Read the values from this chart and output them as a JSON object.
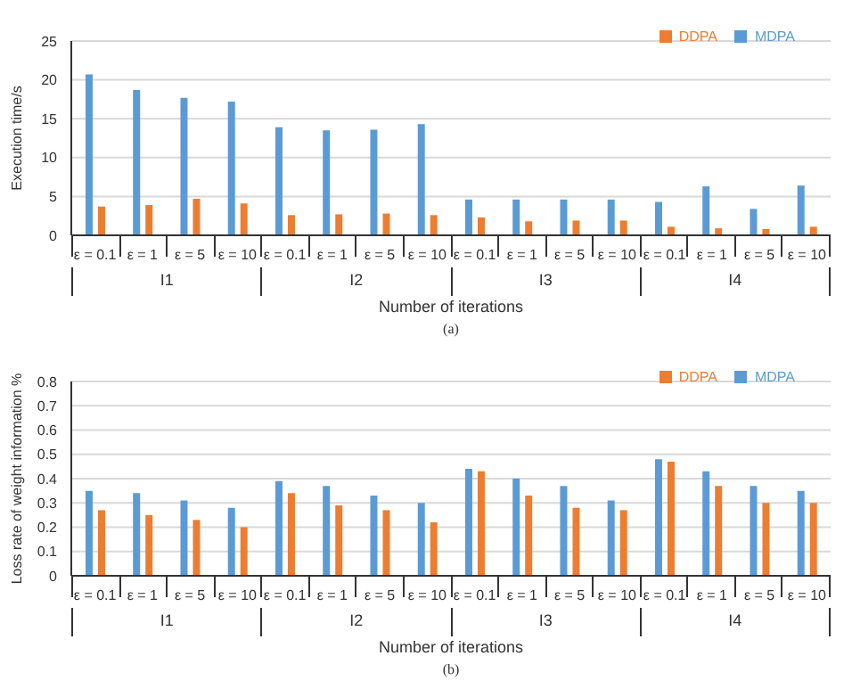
{
  "chart_data": [
    {
      "type": "bar",
      "xlabel": "Number of iterations",
      "ylabel": "Execution time/s",
      "categories": [
        "ε = 0.1",
        "ε = 1",
        "ε = 5",
        "ε = 10",
        "ε = 0.1",
        "ε = 1",
        "ε = 5",
        "ε = 10",
        "ε = 0.1",
        "ε = 1",
        "ε = 5",
        "ε = 10",
        "ε = 0.1",
        "ε = 1",
        "ε = 5",
        "ε = 10"
      ],
      "series": [
        {
          "name": "MDPA",
          "color": "#5b9bd5",
          "values": [
            20.7,
            18.7,
            17.7,
            17.2,
            13.9,
            13.5,
            13.6,
            14.3,
            4.6,
            4.6,
            4.6,
            4.6,
            4.3,
            6.3,
            3.4,
            6.4
          ]
        },
        {
          "name": "DDPA",
          "color": "#ed7d31",
          "values": [
            3.7,
            3.9,
            4.7,
            4.1,
            2.6,
            2.7,
            2.8,
            2.6,
            2.3,
            1.8,
            1.9,
            1.9,
            1.1,
            0.9,
            0.8,
            1.1
          ]
        }
      ],
      "ylim": [
        0,
        25
      ],
      "yticks": [
        0,
        5,
        10,
        15,
        20,
        25
      ],
      "grid": "y",
      "legend": "top right",
      "annotations": [
        "I1",
        "I2",
        "I3",
        "I4",
        "(a)"
      ]
    },
    {
      "type": "bar",
      "xlabel": "Number of iterations",
      "ylabel": "Loss rate of weight information %",
      "categories": [
        "ε = 0.1",
        "ε = 1",
        "ε = 5",
        "ε = 10",
        "ε = 0.1",
        "ε = 1",
        "ε = 5",
        "ε = 10",
        "ε = 0.1",
        "ε = 1",
        "ε = 5",
        "ε = 10",
        "ε = 0.1",
        "ε = 1",
        "ε = 5",
        "ε = 10"
      ],
      "series": [
        {
          "name": "MDPA",
          "color": "#5b9bd5",
          "values": [
            0.35,
            0.34,
            0.31,
            0.28,
            0.39,
            0.37,
            0.33,
            0.3,
            0.44,
            0.4,
            0.37,
            0.31,
            0.48,
            0.43,
            0.37,
            0.35
          ]
        },
        {
          "name": "DDPA",
          "color": "#ed7d31",
          "values": [
            0.27,
            0.25,
            0.23,
            0.2,
            0.34,
            0.29,
            0.27,
            0.22,
            0.43,
            0.33,
            0.28,
            0.27,
            0.47,
            0.37,
            0.3,
            0.3
          ]
        }
      ],
      "ylim": [
        0,
        0.8
      ],
      "yticks": [
        0,
        0.1,
        0.2,
        0.3,
        0.4,
        0.5,
        0.6,
        0.7,
        0.8
      ],
      "grid": "y",
      "legend": "top right",
      "annotations": [
        "I1",
        "I2",
        "I3",
        "I4",
        "(b)"
      ]
    }
  ]
}
